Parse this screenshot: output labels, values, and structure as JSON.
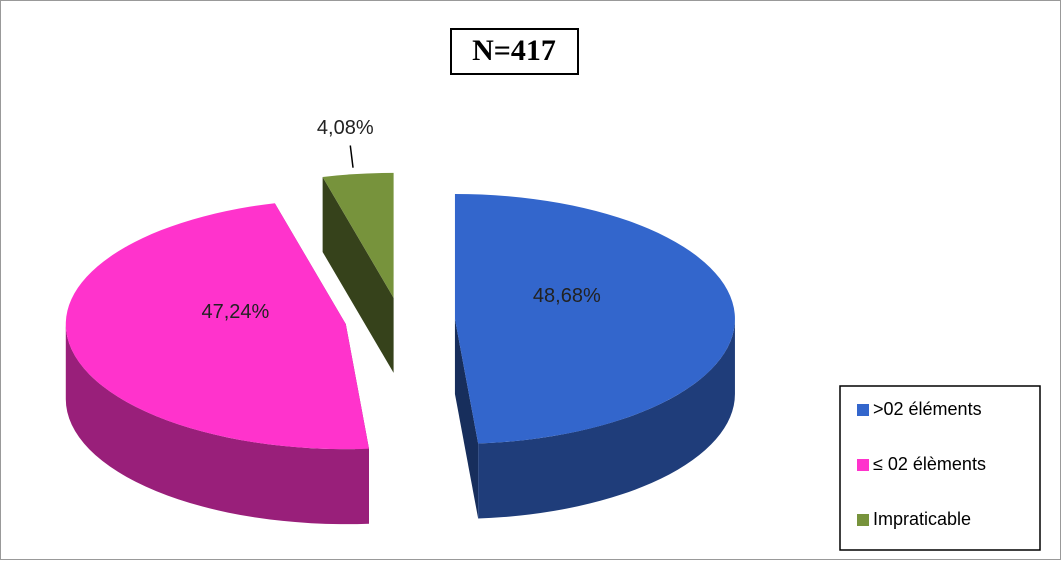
{
  "chart_data": {
    "type": "pie",
    "title": "N=417",
    "categories": [
      ">02 éléments",
      "≤ 02 élèments",
      "Impraticable"
    ],
    "values": [
      48.68,
      47.24,
      4.08
    ],
    "value_labels": [
      "48,68%",
      "47,24%",
      "4,08%"
    ],
    "colors": [
      "#3366cc",
      "#ff33cc",
      "#77933c"
    ],
    "legend": "lower right"
  }
}
